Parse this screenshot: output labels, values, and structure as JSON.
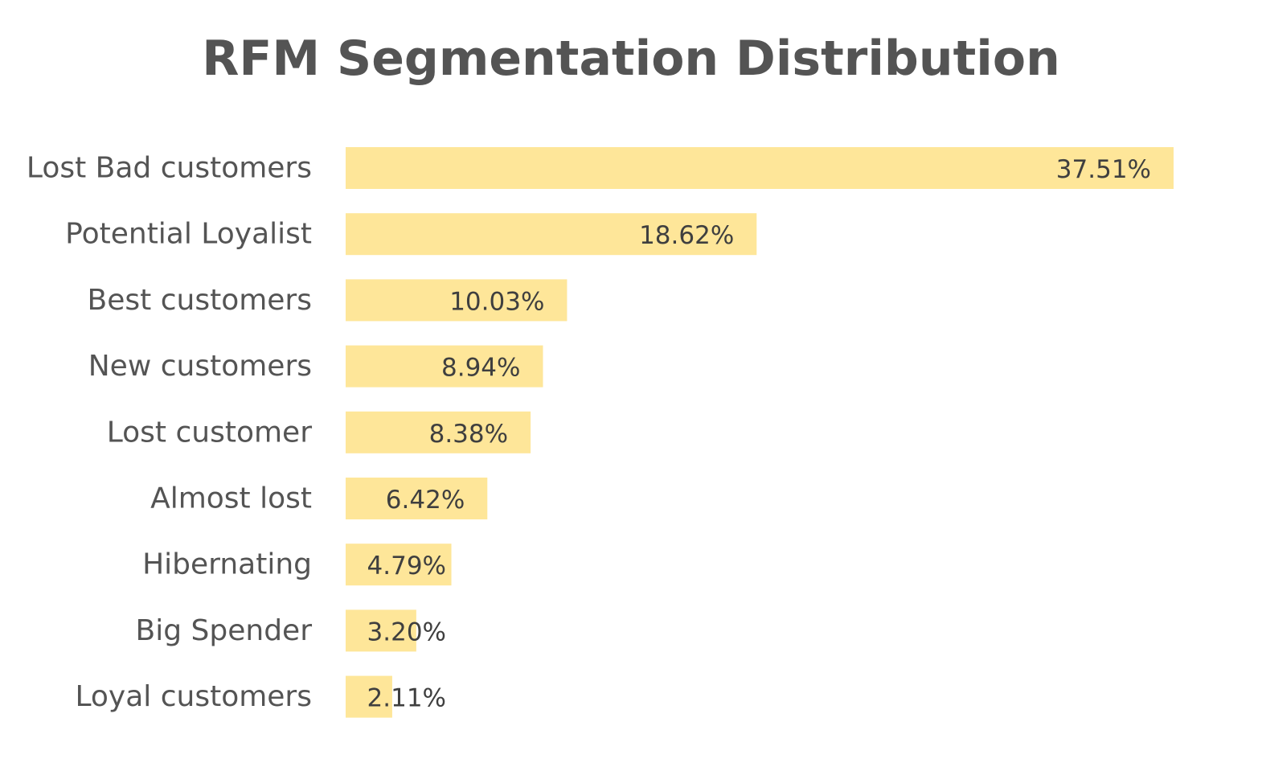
{
  "chart_data": {
    "type": "bar",
    "orientation": "horizontal",
    "title": "RFM Segmentation Distribution",
    "categories": [
      "Lost Bad customers",
      "Potential Loyalist",
      "Best customers",
      "New customers",
      "Lost customer",
      "Almost lost",
      "Hibernating",
      "Big Spender",
      "Loyal customers"
    ],
    "values": [
      37.51,
      18.62,
      10.03,
      8.94,
      8.38,
      6.42,
      4.79,
      3.2,
      2.11
    ],
    "data_labels": [
      "37.51%",
      "18.62%",
      "10.03%",
      "8.94%",
      "8.38%",
      "6.42%",
      "4.79%",
      "3.20%",
      "2.11%"
    ],
    "xlabel": "",
    "ylabel": "",
    "grid": false,
    "legend": "none",
    "bar_color": "#fee699"
  }
}
